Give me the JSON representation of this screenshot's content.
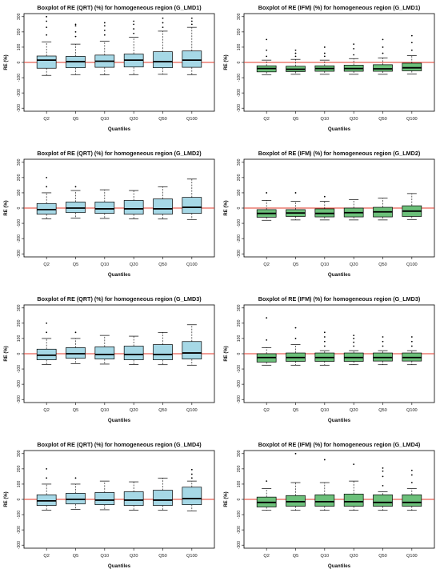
{
  "colors": {
    "qrt_fill": "#a6d8e6",
    "ifm_fill": "#6cc07a",
    "zero_line": "#e03a2a",
    "stroke": "#000000"
  },
  "chart_data": [
    {
      "type": "boxplot",
      "title": "Boxplot of RE (QRT) (%) for homogeneous region (G_LMD1)",
      "xlabel": "Quantiles",
      "ylabel": "RE (%)",
      "categories": [
        "Q2",
        "Q5",
        "Q10",
        "Q20",
        "Q50",
        "Q100"
      ],
      "yticks": [
        -300,
        -200,
        -100,
        0,
        100,
        200,
        300
      ],
      "ylim": [
        -320,
        320
      ],
      "boxes": [
        {
          "lo": -85,
          "q1": -38,
          "med": 15,
          "q3": 42,
          "hi": 135,
          "outliers": [
            180,
            230,
            270,
            300
          ]
        },
        {
          "lo": -80,
          "q1": -35,
          "med": 5,
          "q3": 40,
          "hi": 120,
          "outliers": [
            170,
            200,
            240,
            250
          ]
        },
        {
          "lo": -82,
          "q1": -32,
          "med": 8,
          "q3": 48,
          "hi": 140,
          "outliers": [
            180,
            210,
            240,
            260
          ]
        },
        {
          "lo": -80,
          "q1": -30,
          "med": 15,
          "q3": 55,
          "hi": 165,
          "outliers": [
            190,
            220,
            250,
            270
          ]
        },
        {
          "lo": -78,
          "q1": -35,
          "med": 5,
          "q3": 70,
          "hi": 205,
          "outliers": [
            230,
            260,
            290
          ]
        },
        {
          "lo": -80,
          "q1": -32,
          "med": 15,
          "q3": 75,
          "hi": 230,
          "outliers": [
            250,
            270,
            290
          ]
        }
      ]
    },
    {
      "type": "boxplot",
      "title": "Boxplot of RE (IFM) (%) for homogeneous region (G_LMD1)",
      "xlabel": "Quantiles",
      "ylabel": "RE (%)",
      "categories": [
        "Q2",
        "Q5",
        "Q10",
        "Q20",
        "Q50",
        "Q100"
      ],
      "yticks": [
        -300,
        -200,
        -100,
        0,
        100,
        200,
        300
      ],
      "ylim": [
        -320,
        320
      ],
      "boxes": [
        {
          "lo": -80,
          "q1": -62,
          "med": -40,
          "q3": -22,
          "hi": 15,
          "outliers": [
            40,
            80,
            150
          ]
        },
        {
          "lo": -78,
          "q1": -60,
          "med": -45,
          "q3": -25,
          "hi": 20,
          "outliers": [
            40,
            60,
            80
          ]
        },
        {
          "lo": -78,
          "q1": -58,
          "med": -40,
          "q3": -22,
          "hi": 15,
          "outliers": [
            40,
            60,
            100
          ]
        },
        {
          "lo": -78,
          "q1": -58,
          "med": -40,
          "q3": -18,
          "hi": 25,
          "outliers": [
            50,
            90,
            120
          ]
        },
        {
          "lo": -78,
          "q1": -58,
          "med": -42,
          "q3": -15,
          "hi": 30,
          "outliers": [
            60,
            100,
            150
          ]
        },
        {
          "lo": -75,
          "q1": -55,
          "med": -35,
          "q3": -5,
          "hi": 45,
          "outliers": [
            80,
            130,
            175
          ]
        }
      ]
    },
    {
      "type": "boxplot",
      "title": "Boxplot of RE (QRT) (%) for homogeneous region (G_LMD2)",
      "xlabel": "Quantiles",
      "ylabel": "RE (%)",
      "categories": [
        "Q2",
        "Q5",
        "Q10",
        "Q20",
        "Q50",
        "Q100"
      ],
      "yticks": [
        -300,
        -200,
        -100,
        0,
        100,
        200,
        300
      ],
      "ylim": [
        -320,
        320
      ],
      "boxes": [
        {
          "lo": -70,
          "q1": -40,
          "med": -10,
          "q3": 30,
          "hi": 100,
          "outliers": [
            140,
            200
          ]
        },
        {
          "lo": -65,
          "q1": -30,
          "med": 0,
          "q3": 40,
          "hi": 115,
          "outliers": [
            140
          ]
        },
        {
          "lo": -68,
          "q1": -35,
          "med": -5,
          "q3": 40,
          "hi": 120,
          "outliers": []
        },
        {
          "lo": -70,
          "q1": -40,
          "med": -5,
          "q3": 50,
          "hi": 115,
          "outliers": []
        },
        {
          "lo": -72,
          "q1": -40,
          "med": -5,
          "q3": 60,
          "hi": 140,
          "outliers": []
        },
        {
          "lo": -75,
          "q1": -35,
          "med": 5,
          "q3": 70,
          "hi": 190,
          "outliers": []
        }
      ]
    },
    {
      "type": "boxplot",
      "title": "Boxplot of RE (IFM) (%) for homogeneous region (G_LMD2)",
      "xlabel": "Quantiles",
      "ylabel": "RE (%)",
      "categories": [
        "Q2",
        "Q5",
        "Q10",
        "Q20",
        "Q50",
        "Q100"
      ],
      "yticks": [
        -300,
        -200,
        -100,
        0,
        100,
        200,
        300
      ],
      "ylim": [
        -320,
        320
      ],
      "boxes": [
        {
          "lo": -80,
          "q1": -60,
          "med": -35,
          "q3": -10,
          "hi": 50,
          "outliers": [
            100
          ]
        },
        {
          "lo": -78,
          "q1": -55,
          "med": -32,
          "q3": -10,
          "hi": 45,
          "outliers": [
            100
          ]
        },
        {
          "lo": -78,
          "q1": -58,
          "med": -35,
          "q3": -5,
          "hi": 45,
          "outliers": [
            75
          ]
        },
        {
          "lo": -78,
          "q1": -58,
          "med": -30,
          "q3": 0,
          "hi": 55,
          "outliers": []
        },
        {
          "lo": -78,
          "q1": -58,
          "med": -25,
          "q3": 5,
          "hi": 65,
          "outliers": []
        },
        {
          "lo": -75,
          "q1": -55,
          "med": -20,
          "q3": 15,
          "hi": 95,
          "outliers": []
        }
      ]
    },
    {
      "type": "boxplot",
      "title": "Boxplot of RE (QRT) (%) for homogeneous region (G_LMD3)",
      "xlabel": "Quantiles",
      "ylabel": "RE (%)",
      "categories": [
        "Q2",
        "Q5",
        "Q10",
        "Q20",
        "Q50",
        "Q100"
      ],
      "yticks": [
        -300,
        -200,
        -100,
        0,
        100,
        200,
        300
      ],
      "ylim": [
        -320,
        320
      ],
      "boxes": [
        {
          "lo": -70,
          "q1": -40,
          "med": -10,
          "q3": 30,
          "hi": 100,
          "outliers": [
            140,
            200
          ]
        },
        {
          "lo": -65,
          "q1": -30,
          "med": 0,
          "q3": 40,
          "hi": 100,
          "outliers": [
            140
          ]
        },
        {
          "lo": -68,
          "q1": -35,
          "med": -5,
          "q3": 45,
          "hi": 120,
          "outliers": []
        },
        {
          "lo": -70,
          "q1": -40,
          "med": -5,
          "q3": 50,
          "hi": 115,
          "outliers": []
        },
        {
          "lo": -72,
          "q1": -40,
          "med": -5,
          "q3": 60,
          "hi": 140,
          "outliers": []
        },
        {
          "lo": -75,
          "q1": -35,
          "med": 5,
          "q3": 80,
          "hi": 190,
          "outliers": []
        }
      ]
    },
    {
      "type": "boxplot",
      "title": "Boxplot of RE (IFM) (%) for homogeneous region (G_LMD3)",
      "xlabel": "Quantiles",
      "ylabel": "RE (%)",
      "categories": [
        "Q2",
        "Q5",
        "Q10",
        "Q20",
        "Q50",
        "Q100"
      ],
      "yticks": [
        -300,
        -200,
        -100,
        0,
        100,
        200,
        300
      ],
      "ylim": [
        -320,
        320
      ],
      "boxes": [
        {
          "lo": -75,
          "q1": -55,
          "med": -25,
          "q3": 0,
          "hi": 40,
          "outliers": [
            90,
            235
          ]
        },
        {
          "lo": -75,
          "q1": -50,
          "med": -25,
          "q3": 5,
          "hi": 60,
          "outliers": [
            100,
            170
          ]
        },
        {
          "lo": -75,
          "q1": -50,
          "med": -25,
          "q3": 5,
          "hi": 20,
          "outliers": [
            50,
            80,
            110,
            140
          ]
        },
        {
          "lo": -72,
          "q1": -50,
          "med": -25,
          "q3": 5,
          "hi": 20,
          "outliers": [
            50,
            75,
            100,
            120
          ]
        },
        {
          "lo": -72,
          "q1": -48,
          "med": -25,
          "q3": 5,
          "hi": 20,
          "outliers": [
            50,
            80,
            110
          ]
        },
        {
          "lo": -72,
          "q1": -48,
          "med": -25,
          "q3": 5,
          "hi": 20,
          "outliers": [
            50,
            80,
            110
          ]
        }
      ]
    },
    {
      "type": "boxplot",
      "title": "Boxplot of RE (QRT) (%) for homogeneous region (G_LMD4)",
      "xlabel": "Quantiles",
      "ylabel": "RE (%)",
      "categories": [
        "Q2",
        "Q5",
        "Q10",
        "Q20",
        "Q50",
        "Q100"
      ],
      "yticks": [
        -300,
        -200,
        -100,
        0,
        100,
        200,
        300
      ],
      "ylim": [
        -320,
        320
      ],
      "boxes": [
        {
          "lo": -70,
          "q1": -40,
          "med": -10,
          "q3": 30,
          "hi": 100,
          "outliers": [
            140,
            200
          ]
        },
        {
          "lo": -65,
          "q1": -30,
          "med": 0,
          "q3": 40,
          "hi": 100,
          "outliers": [
            140
          ]
        },
        {
          "lo": -68,
          "q1": -35,
          "med": -5,
          "q3": 45,
          "hi": 120,
          "outliers": []
        },
        {
          "lo": -70,
          "q1": -40,
          "med": -5,
          "q3": 50,
          "hi": 115,
          "outliers": []
        },
        {
          "lo": -72,
          "q1": -40,
          "med": -5,
          "q3": 60,
          "hi": 140,
          "outliers": []
        },
        {
          "lo": -75,
          "q1": -35,
          "med": 5,
          "q3": 80,
          "hi": 120,
          "outliers": [
            140,
            165,
            195
          ]
        }
      ]
    },
    {
      "type": "boxplot",
      "title": "Boxplot of RE (IFM) (%) for homogeneous region (G_LMD4)",
      "xlabel": "Quantiles",
      "ylabel": "RE (%)",
      "categories": [
        "Q2",
        "Q5",
        "Q10",
        "Q20",
        "Q50",
        "Q100"
      ],
      "yticks": [
        -300,
        -200,
        -100,
        0,
        100,
        200,
        300
      ],
      "ylim": [
        -320,
        320
      ],
      "boxes": [
        {
          "lo": -72,
          "q1": -50,
          "med": -20,
          "q3": 15,
          "hi": 70,
          "outliers": [
            120
          ]
        },
        {
          "lo": -72,
          "q1": -45,
          "med": -15,
          "q3": 25,
          "hi": 110,
          "outliers": [
            300
          ]
        },
        {
          "lo": -72,
          "q1": -45,
          "med": -15,
          "q3": 30,
          "hi": 110,
          "outliers": [
            260
          ]
        },
        {
          "lo": -72,
          "q1": -45,
          "med": -15,
          "q3": 35,
          "hi": 120,
          "outliers": [
            230
          ]
        },
        {
          "lo": -72,
          "q1": -45,
          "med": -20,
          "q3": 30,
          "hi": 50,
          "outliers": [
            90,
            150,
            185,
            205
          ]
        },
        {
          "lo": -72,
          "q1": -45,
          "med": -20,
          "q3": 30,
          "hi": 70,
          "outliers": [
            110,
            160,
            190
          ]
        }
      ]
    }
  ]
}
